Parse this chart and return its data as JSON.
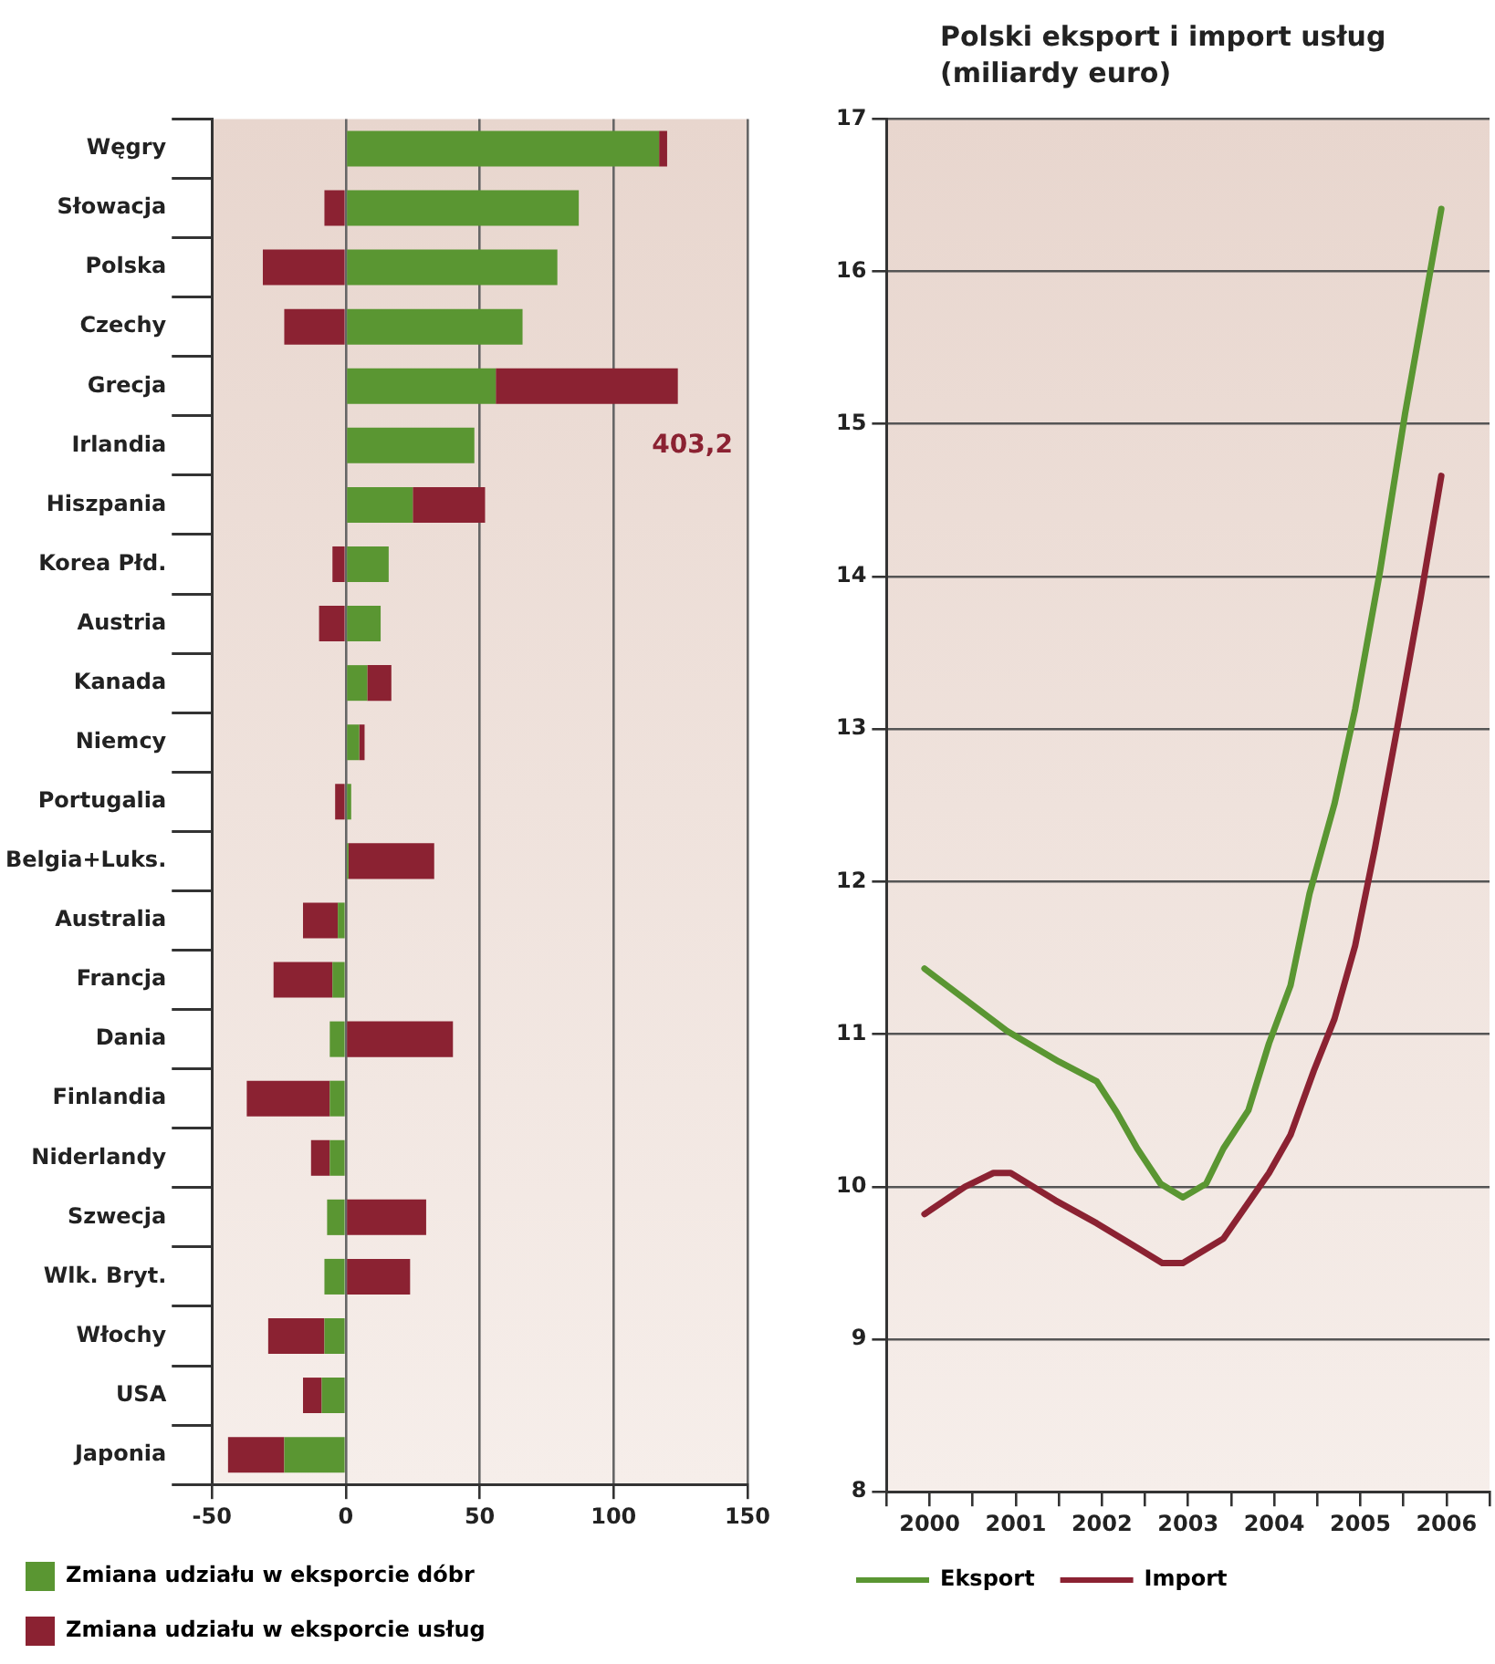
{
  "chart_data": [
    {
      "type": "bar",
      "orientation": "horizontal",
      "stacked": true,
      "categories": [
        "Węgry",
        "Słowacja",
        "Polska",
        "Czechy",
        "Grecja",
        "Irlandia",
        "Hiszpania",
        "Korea Płd.",
        "Austria",
        "Kanada",
        "Niemcy",
        "Portugalia",
        "Belgia+Luks.",
        "Australia",
        "Francja",
        "Dania",
        "Finlandia",
        "Niderlandy",
        "Szwecja",
        "Wlk. Bryt.",
        "Włochy",
        "USA",
        "Japonia"
      ],
      "series": [
        {
          "name": "Zmiana udziału w eksporcie dóbr",
          "color": "#5a9632",
          "values": [
            117,
            87,
            79,
            66,
            56,
            48,
            25,
            16,
            13,
            8,
            5,
            2,
            1,
            -3,
            -5,
            -6,
            -6,
            -6,
            -7,
            -8,
            -8,
            -9,
            -23
          ]
        },
        {
          "name": "Zmiana udziału w eksporcie usług",
          "color": "#8b2232",
          "values": [
            3,
            -8,
            -31,
            -23,
            68,
            null,
            27,
            -5,
            -10,
            9,
            2,
            -4,
            32,
            -13,
            -22,
            40,
            -31,
            -7,
            30,
            24,
            -21,
            -7,
            -21
          ]
        }
      ],
      "annotations": [
        "403,2"
      ],
      "xlim": [
        -50,
        150
      ],
      "xticks": [
        -50,
        0,
        50,
        100,
        150
      ],
      "grid": "x",
      "legend": "bottom"
    },
    {
      "type": "line",
      "title": "Polski eksport i import usług (miliardy euro)",
      "series": [
        {
          "name": "Eksport",
          "color": "#5a9632",
          "x": [
            2000.44,
            2001.4,
            2002.0,
            2002.44,
            2002.67,
            2002.91,
            2003.18,
            2003.44,
            2003.71,
            2003.91,
            2004.2,
            2004.44,
            2004.69,
            2004.91,
            2005.2,
            2005.44,
            2005.73,
            2006.02,
            2006.44
          ],
          "values": [
            11.43,
            11.02,
            10.82,
            10.69,
            10.49,
            10.25,
            10.02,
            9.93,
            10.02,
            10.25,
            10.5,
            10.94,
            11.32,
            11.92,
            12.51,
            13.13,
            14.04,
            15.07,
            16.41
          ]
        },
        {
          "name": "Import",
          "color": "#8b2232",
          "x": [
            2000.44,
            2000.91,
            2001.24,
            2001.44,
            2001.96,
            2002.44,
            2002.91,
            2003.2,
            2003.44,
            2003.91,
            2004.44,
            2004.69,
            2004.96,
            2005.2,
            2005.44,
            2005.67,
            2005.91,
            2006.2,
            2006.44
          ],
          "values": [
            9.82,
            10.0,
            10.09,
            10.09,
            9.91,
            9.76,
            9.6,
            9.5,
            9.5,
            9.66,
            10.09,
            10.34,
            10.76,
            11.1,
            11.58,
            12.22,
            12.95,
            13.86,
            14.66
          ]
        }
      ],
      "xlim": [
        2000,
        2007
      ],
      "xticks": [
        {
          "value": 2000,
          "label": null
        },
        {
          "value": 2000.5,
          "label": "2000"
        },
        {
          "value": 2001,
          "label": null
        },
        {
          "value": 2001.5,
          "label": "2001"
        },
        {
          "value": 2002,
          "label": null
        },
        {
          "value": 2002.5,
          "label": "2002"
        },
        {
          "value": 2003,
          "label": null
        },
        {
          "value": 2003.5,
          "label": "2003"
        },
        {
          "value": 2004,
          "label": null
        },
        {
          "value": 2004.5,
          "label": "2004"
        },
        {
          "value": 2005,
          "label": null
        },
        {
          "value": 2005.5,
          "label": "2005"
        },
        {
          "value": 2006,
          "label": null
        },
        {
          "value": 2006.5,
          "label": "2006"
        },
        {
          "value": 2007,
          "label": null
        }
      ],
      "ylim": [
        8,
        17
      ],
      "yticks": [
        8,
        9,
        10,
        11,
        12,
        13,
        14,
        15,
        16,
        17
      ],
      "grid": "y",
      "legend": "bottom",
      "marker": "none",
      "line_style": "solid"
    }
  ]
}
